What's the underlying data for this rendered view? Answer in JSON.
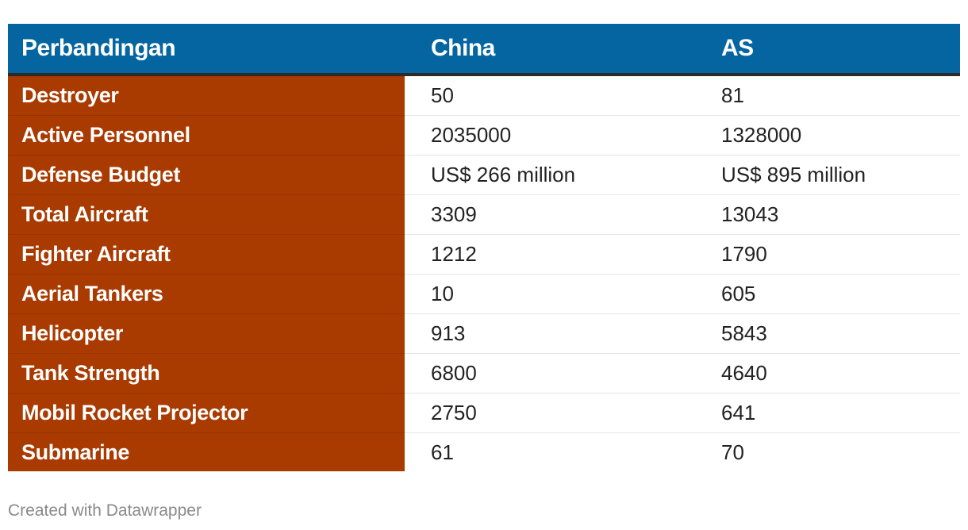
{
  "chart_data": {
    "type": "table",
    "columns": [
      "Perbandingan",
      "China",
      "AS"
    ],
    "rows": [
      {
        "label": "Destroyer",
        "china": "50",
        "as": "81"
      },
      {
        "label": "Active Personnel",
        "china": "2035000",
        "as": "1328000"
      },
      {
        "label": "Defense Budget",
        "china": "US$ 266 million",
        "as": "US$ 895 million"
      },
      {
        "label": "Total Aircraft",
        "china": "3309",
        "as": "13043"
      },
      {
        "label": "Fighter Aircraft",
        "china": "1212",
        "as": "1790"
      },
      {
        "label": "Aerial Tankers",
        "china": "10",
        "as": "605"
      },
      {
        "label": "Helicopter",
        "china": "913",
        "as": "5843"
      },
      {
        "label": "Tank Strength",
        "china": "6800",
        "as": "4640"
      },
      {
        "label": "Mobil Rocket Projector",
        "china": "2750",
        "as": "641"
      },
      {
        "label": "Submarine",
        "china": "61",
        "as": "70"
      }
    ]
  },
  "colors": {
    "header_bg": "#0565a0",
    "label_col_bg": "#a93a00",
    "header_text": "#ffffff",
    "body_text": "#222222",
    "footer_text": "#8a8a8a"
  },
  "footer": {
    "credit": "Created with Datawrapper"
  }
}
